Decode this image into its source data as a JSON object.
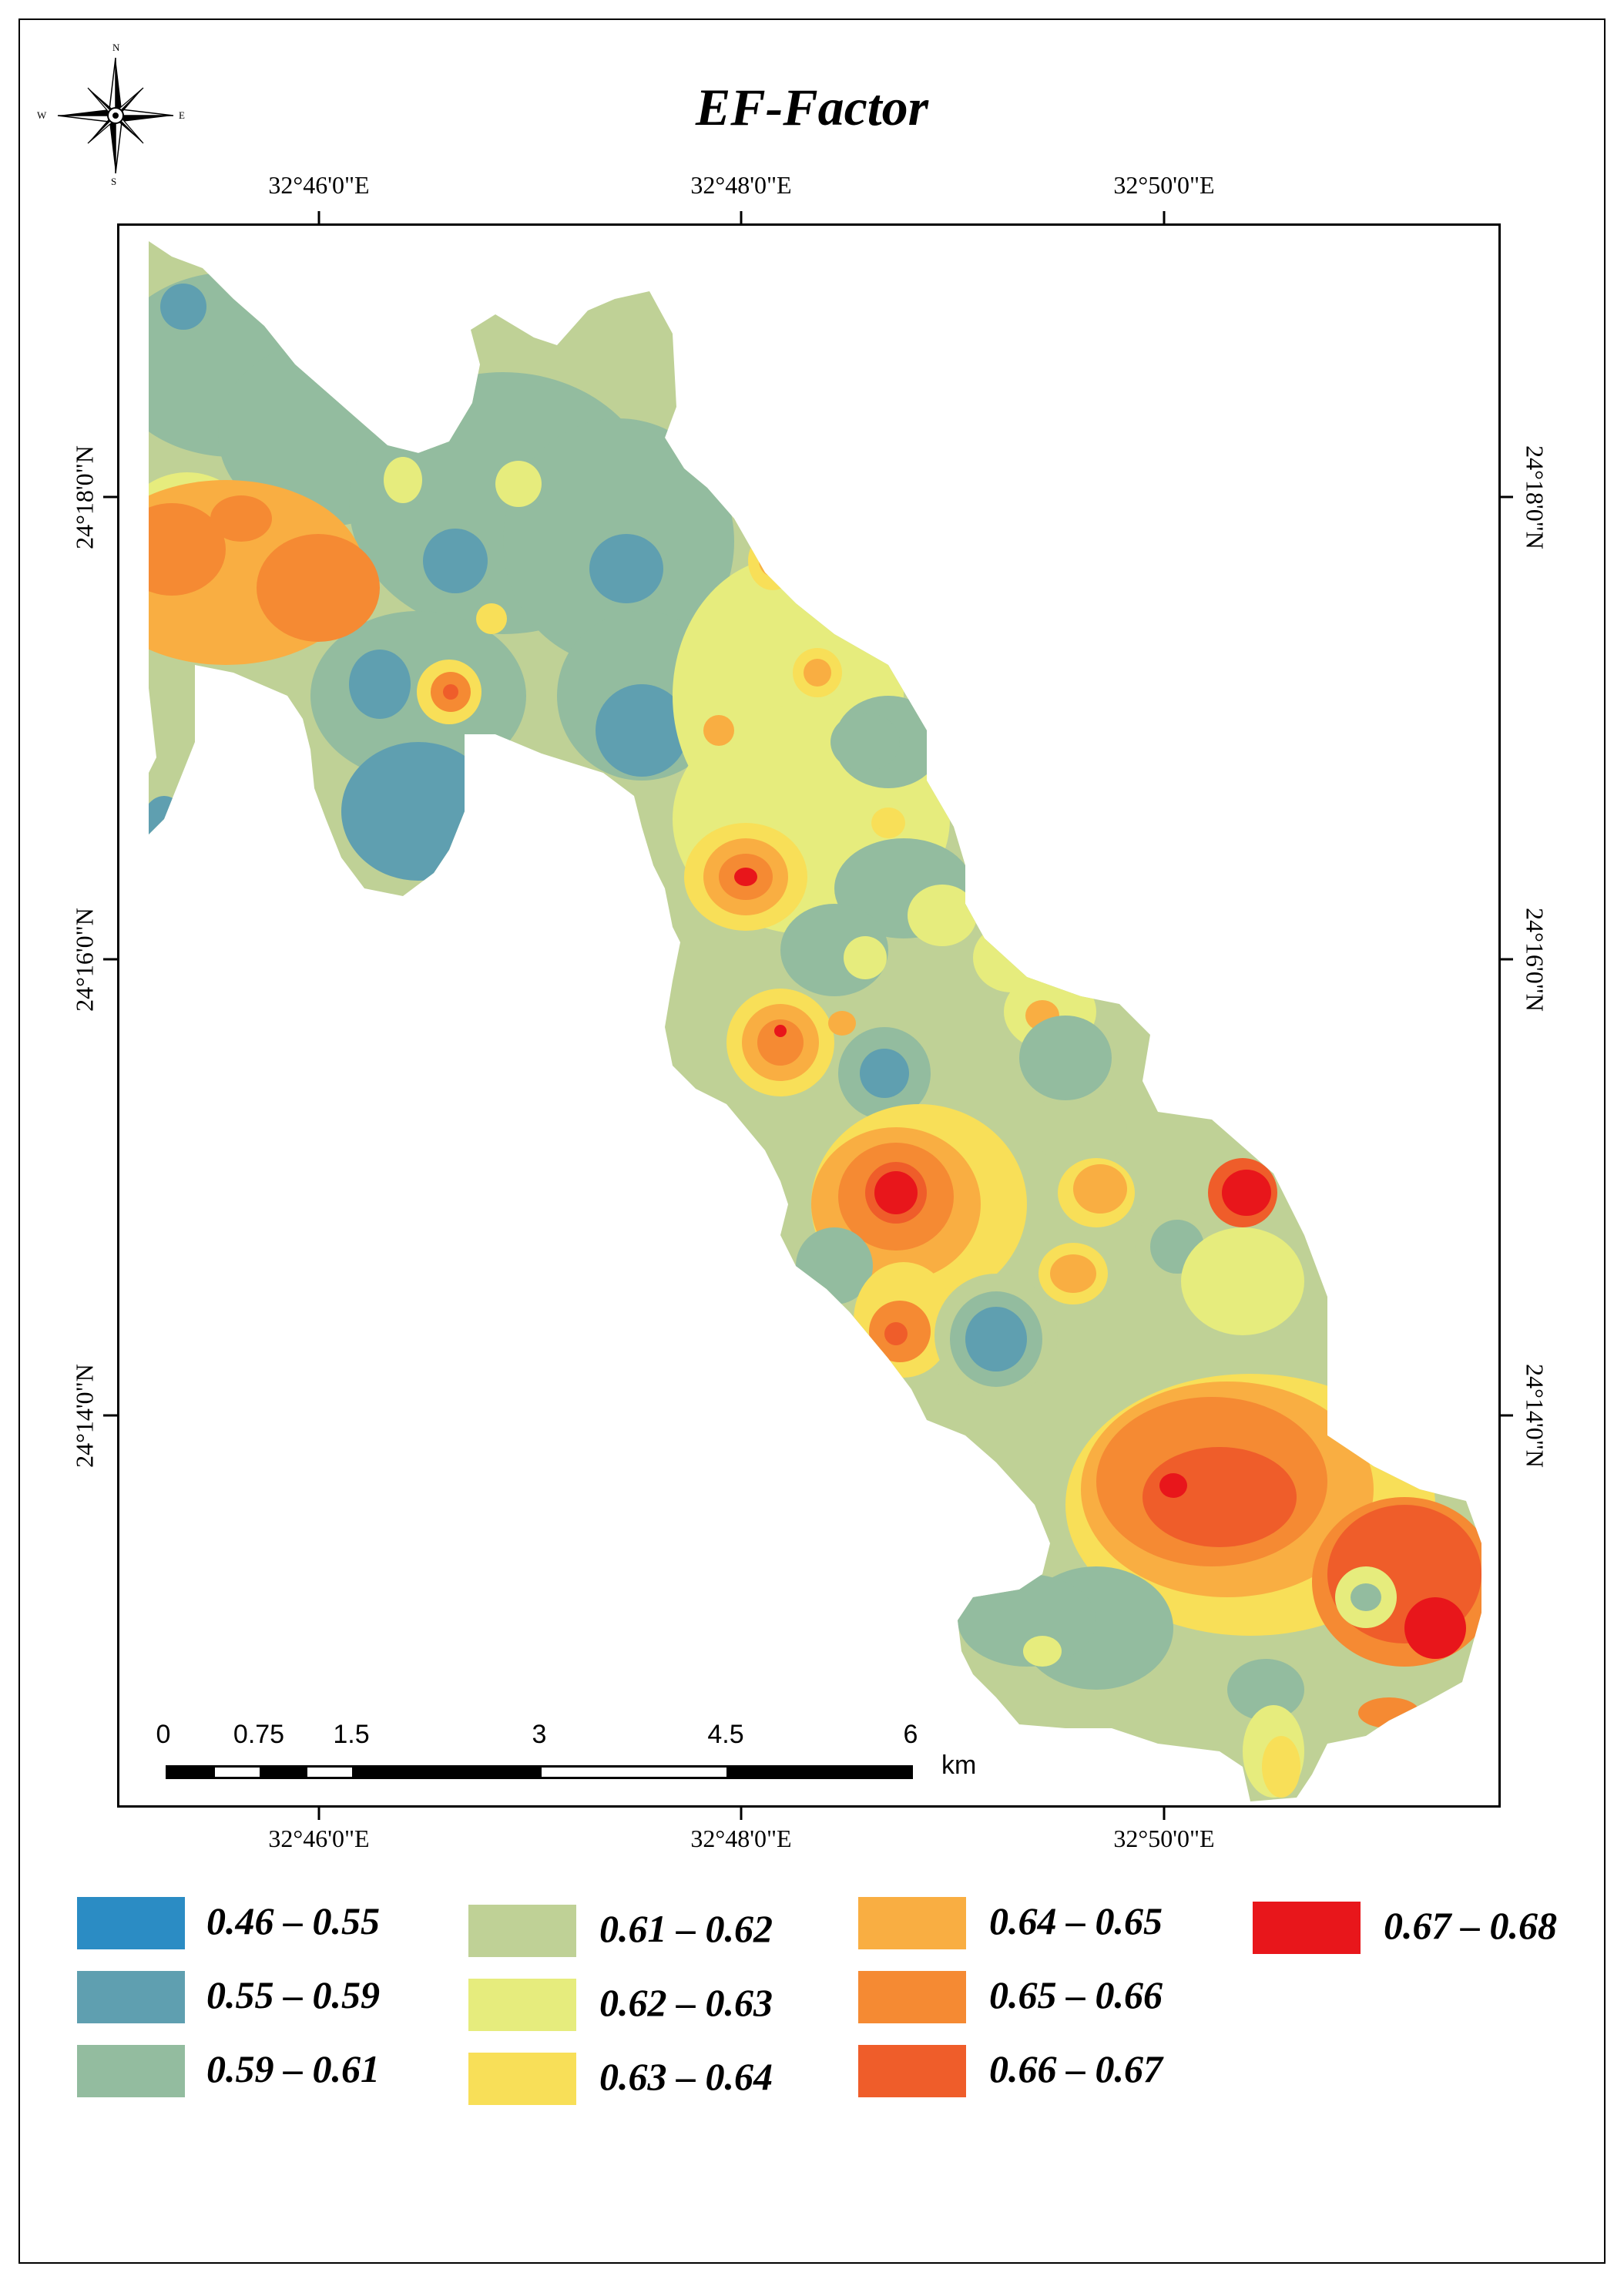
{
  "title": "EF-Factor",
  "compass": {
    "icon": "north-arrow-compass-rose",
    "n": "N",
    "s": "S",
    "e": "E",
    "w": "W"
  },
  "longitude_labels": [
    "32°46'0\"E",
    "32°48'0\"E",
    "32°50'0\"E"
  ],
  "latitude_labels": [
    "24°18'0\"N",
    "24°16'0\"N",
    "24°14'0\"N"
  ],
  "scale_bar": {
    "ticks": [
      "0",
      "0.75",
      "1.5",
      "3",
      "4.5",
      "6"
    ],
    "unit": "km"
  },
  "legend": [
    {
      "label": "0.46 – 0.55",
      "color": "#2b8cc4"
    },
    {
      "label": "0.55 – 0.59",
      "color": "#5f9fb0"
    },
    {
      "label": "0.59 – 0.61",
      "color": "#93bc9f"
    },
    {
      "label": "0.61 – 0.62",
      "color": "#bfd196"
    },
    {
      "label": "0.62 – 0.63",
      "color": "#e6ec7d"
    },
    {
      "label": "0.63 – 0.64",
      "color": "#f8df58"
    },
    {
      "label": "0.64 – 0.65",
      "color": "#f9ae42"
    },
    {
      "label": "0.65 – 0.66",
      "color": "#f58a33"
    },
    {
      "label": "0.66 – 0.67",
      "color": "#ef5d2a"
    },
    {
      "label": "0.67 – 0.68",
      "color": "#e8161b"
    }
  ]
}
